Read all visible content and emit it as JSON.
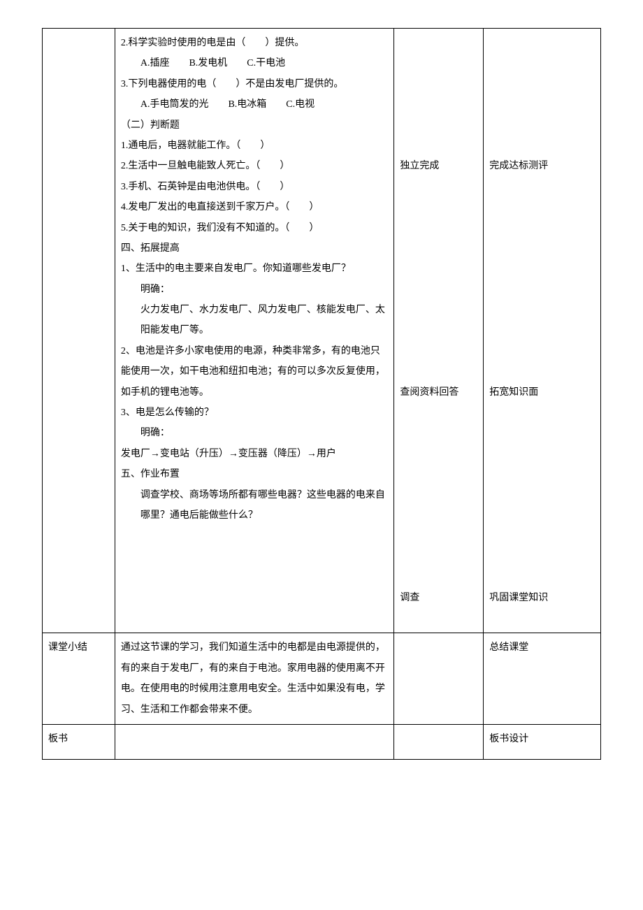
{
  "row1": {
    "col1": "",
    "col2_lines": [
      {
        "text": "2.科学实验时使用的电是由（　　）提供。",
        "indent": false
      },
      {
        "text": "A.插座　　B.发电机　　C.干电池",
        "indent": true
      },
      {
        "text": "3.下列电器使用的电（　　）不是由发电厂提供的。",
        "indent": false
      },
      {
        "text": "A.手电筒发的光　　B.电冰箱　　C.电视",
        "indent": true
      },
      {
        "text": "（二）判断题",
        "indent": false
      },
      {
        "text": "1.通电后，电器就能工作。（　　）",
        "indent": false
      },
      {
        "text": "2.生活中一旦触电能致人死亡。（　　）",
        "indent": false
      },
      {
        "text": "3.手机、石英钟是由电池供电。（　　）",
        "indent": false
      },
      {
        "text": "4.发电厂发出的电直接送到千家万户。（　　）",
        "indent": false
      },
      {
        "text": "5.关于电的知识，我们没有不知道的。（　　）",
        "indent": false
      },
      {
        "text": "四、拓展提高",
        "indent": false
      },
      {
        "text": "1、生活中的电主要来自发电厂。你知道哪些发电厂？",
        "indent": false
      },
      {
        "text": "明确：",
        "indent": true
      },
      {
        "text": "火力发电厂、水力发电厂、风力发电厂、核能发电厂、太阳能发电厂等。",
        "indent": true
      },
      {
        "text": "2、电池是许多小家电使用的电源，种类非常多，有的电池只能使用一次，如干电池和纽扣电池；有的可以多次反复使用，如手机的锂电池等。",
        "indent": false
      },
      {
        "text": "3、电是怎么传输的？",
        "indent": false
      },
      {
        "text": "明确：",
        "indent": true
      },
      {
        "text": "发电厂→变电站（升压）→变压器（降压）→用户",
        "indent": false
      },
      {
        "text": "五、作业布置",
        "indent": false
      },
      {
        "text": "调查学校、商场等场所都有哪些电器？这些电器的电来自哪里？通电后能做些什么？",
        "indent": true
      }
    ],
    "col3_items": [
      {
        "text": "独立完成",
        "before": 6
      },
      {
        "text": "查阅资料回答",
        "before": 10
      },
      {
        "text": "调查",
        "before": 9
      }
    ],
    "col4_items": [
      {
        "text": "完成达标测评",
        "before": 6
      },
      {
        "text": "拓宽知识面",
        "before": 10
      },
      {
        "text": "巩固课堂知识",
        "before": 9
      }
    ]
  },
  "row2": {
    "col1": "课堂小结",
    "col2": "通过这节课的学习，我们知道生活中的电都是由电源提供的，有的来自于发电厂，有的来自于电池。家用电器的使用离不开电。在使用电的时候用注意用电安全。生活中如果没有电，学习、生活和工作都会带来不便。",
    "col3": "",
    "col4": "总结课堂"
  },
  "row3": {
    "col1": "板书",
    "col2": "",
    "col3": "",
    "col4": "板书设计"
  }
}
